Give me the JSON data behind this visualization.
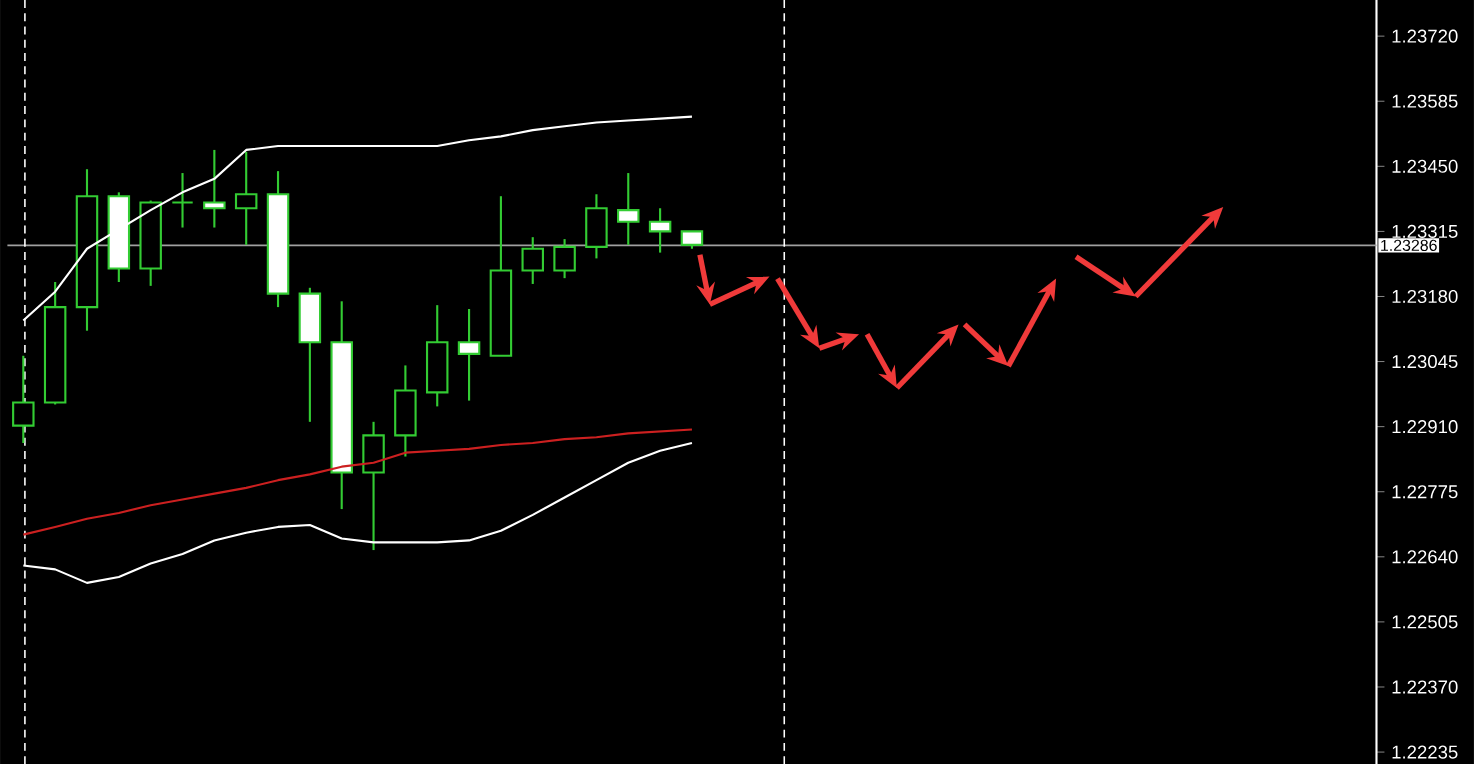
{
  "chart_data": {
    "type": "candlestick",
    "categories": [
      null,
      null,
      null,
      null,
      null,
      null,
      null,
      null,
      null,
      null,
      null,
      null,
      null,
      null,
      null,
      null,
      null,
      null,
      null,
      null,
      null,
      null,
      null,
      null,
      null,
      null,
      null,
      null,
      null,
      null,
      null,
      null,
      null,
      null,
      null,
      null,
      null,
      null,
      null,
      null,
      null,
      null,
      null
    ],
    "ohlc": [
      [
        1.22912,
        1.23057,
        1.22876,
        1.2296
      ],
      [
        1.2296,
        1.2321,
        1.22956,
        1.23158
      ],
      [
        1.23158,
        1.23444,
        1.23109,
        1.23388
      ],
      [
        1.23388,
        1.23396,
        1.2321,
        1.23238
      ],
      [
        1.23238,
        1.23379,
        1.23202,
        1.23375
      ],
      [
        1.23375,
        1.23436,
        1.23323,
        1.23375
      ],
      [
        1.23375,
        1.23484,
        1.23323,
        1.23363
      ],
      [
        1.23363,
        1.2348,
        1.23287,
        1.23392
      ],
      [
        1.23392,
        1.2344,
        1.23158,
        1.23186
      ],
      [
        1.23186,
        1.23198,
        1.2292,
        1.23085
      ],
      [
        1.23085,
        1.2317,
        1.22739,
        1.22815
      ],
      [
        1.22815,
        1.2292,
        1.22654,
        1.22892
      ],
      [
        1.22892,
        1.23037,
        1.22848,
        1.22985
      ],
      [
        1.22981,
        1.23162,
        1.22952,
        1.23085
      ],
      [
        1.23085,
        1.23154,
        1.22964,
        1.23061
      ],
      [
        1.23057,
        1.23388,
        1.23057,
        1.23234
      ],
      [
        1.23234,
        1.23303,
        1.23206,
        1.23279
      ],
      [
        1.23234,
        1.23299,
        1.23218,
        1.23283
      ],
      [
        1.23283,
        1.23392,
        1.23259,
        1.23363
      ],
      [
        1.23359,
        1.23436,
        1.23287,
        1.23335
      ],
      [
        1.23335,
        1.23363,
        1.23271,
        1.23315
      ],
      [
        1.23315,
        1.23315,
        1.23279,
        1.23287
      ],
      null,
      null,
      null,
      null,
      null,
      null,
      null,
      null,
      null,
      null,
      null,
      null,
      null,
      null,
      null,
      null,
      null,
      null,
      null,
      null,
      null
    ],
    "color": "#33cc33",
    "series": [
      {
        "type": "line",
        "color": "#ffffff",
        "values": [
          1.2313,
          1.2319,
          1.23279,
          1.23319,
          1.23359,
          1.23396,
          1.23424,
          1.23484,
          1.23492,
          1.23492,
          1.23492,
          1.23492,
          1.23492,
          1.23492,
          1.23504,
          1.23512,
          1.23525,
          1.23533,
          1.23541,
          1.23545,
          1.23549,
          1.23553,
          null,
          null,
          null,
          null,
          null,
          null,
          null,
          null,
          null,
          null,
          null,
          null,
          null,
          null,
          null,
          null,
          null,
          null,
          null,
          null,
          null
        ]
      },
      {
        "type": "line",
        "color": "#cc2020",
        "values": [
          1.22686,
          1.22702,
          1.22719,
          1.22731,
          1.22747,
          1.22759,
          1.22771,
          1.22783,
          1.22799,
          1.22811,
          1.22827,
          1.22835,
          1.22856,
          1.2286,
          1.22864,
          1.22872,
          1.22876,
          1.22884,
          1.22888,
          1.22896,
          1.229,
          1.22904,
          null,
          null,
          null,
          null,
          null,
          null,
          null,
          null,
          null,
          null,
          null,
          null,
          null,
          null,
          null,
          null,
          null,
          null,
          null,
          null,
          null
        ]
      },
      {
        "type": "line",
        "color": "#ffffff",
        "values": [
          1.22622,
          1.22614,
          1.22586,
          1.22598,
          1.22626,
          1.22646,
          1.22674,
          1.2269,
          1.22702,
          1.22706,
          1.22678,
          1.2267,
          1.2267,
          1.2267,
          1.22674,
          1.22694,
          1.22727,
          1.22763,
          1.22799,
          1.22835,
          1.2286,
          1.22876,
          null,
          null,
          null,
          null,
          null,
          null,
          null,
          null,
          null,
          null,
          null,
          null,
          null,
          null,
          null,
          null,
          null,
          null,
          null,
          null,
          null
        ]
      }
    ],
    "ylim": [
      1.2221,
      1.23795
    ],
    "yticks": [
      {
        "value": 1.2372,
        "label": "1.23720"
      },
      1.23585,
      {
        "value": 1.2345,
        "label": "1.23450"
      },
      1.23315,
      {
        "value": 1.2318,
        "label": "1.23180"
      },
      1.23045,
      {
        "value": 1.2291,
        "label": "1.22910"
      },
      1.22775,
      {
        "value": 1.2264,
        "label": "1.22640"
      },
      1.22505,
      {
        "value": 1.2237,
        "label": "1.22370"
      },
      1.22235
    ],
    "tick_labels": "y",
    "ref_lines": [
      {
        "axis": "y",
        "value": 1.23286,
        "label": "1.23286",
        "color": "#a0a0a0"
      }
    ]
  }
}
